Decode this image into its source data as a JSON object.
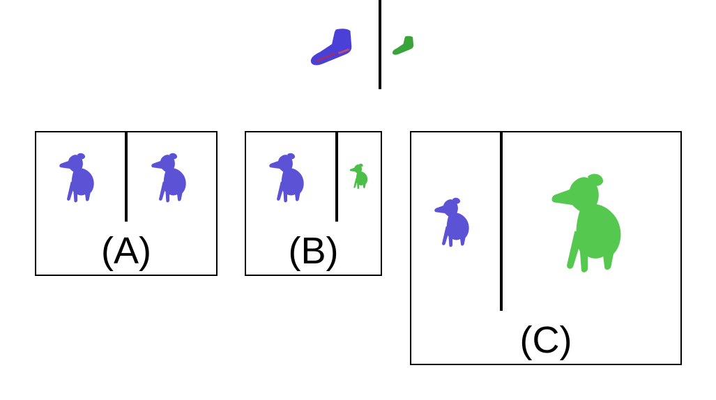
{
  "colors": {
    "blue": "#5a55d8",
    "blue_dark": "#2f2aa6",
    "green": "#4fc24a",
    "green_dark": "#2f9a32",
    "border": "#000000"
  },
  "top_example": {
    "left_icon": "sneaker-icon",
    "right_icon": "sneaker-icon"
  },
  "panels": [
    {
      "label": "(A)",
      "left_icon": "dog-icon",
      "right_icon": "dog-icon"
    },
    {
      "label": "(B)",
      "left_icon": "dog-icon",
      "right_icon": "dog-icon"
    },
    {
      "label": "(C)",
      "left_icon": "dog-icon",
      "right_icon": "dog-icon"
    }
  ]
}
